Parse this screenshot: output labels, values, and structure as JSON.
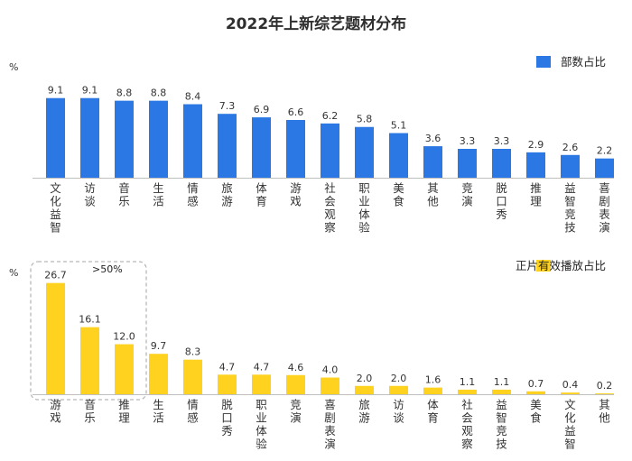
{
  "title": "2022年上新综艺题材分布",
  "chart_data": [
    {
      "type": "bar",
      "unit": "%",
      "legend": "部数占比",
      "color": "#2B78E4",
      "categories": [
        "文化益智",
        "访谈",
        "音乐",
        "生活",
        "情感",
        "旅游",
        "体育",
        "游戏",
        "社会观察",
        "职业体验",
        "美食",
        "其他",
        "竞演",
        "脱口秀",
        "推理",
        "益智竞技",
        "喜剧表演"
      ],
      "values": [
        9.1,
        9.1,
        8.8,
        8.8,
        8.4,
        7.3,
        6.9,
        6.6,
        6.2,
        5.8,
        5.1,
        3.6,
        3.3,
        3.3,
        2.9,
        2.6,
        2.2
      ],
      "labels": [
        "9.1",
        "9.1",
        "8.8",
        "8.8",
        "8.4",
        "7.3",
        "6.9",
        "6.6",
        "6.2",
        "5.8",
        "5.1",
        "3.6",
        "3.3",
        "3.3",
        "2.9",
        "2.6",
        "2.2"
      ],
      "ylim": [
        0,
        10
      ]
    },
    {
      "type": "bar",
      "unit": "%",
      "legend": "正片有效播放占比",
      "color": "#FFD21F",
      "categories": [
        "游戏",
        "音乐",
        "推理",
        "生活",
        "情感",
        "脱口秀",
        "职业体验",
        "竞演",
        "喜剧表演",
        "旅游",
        "访谈",
        "体育",
        "社会观察",
        "益智竞技",
        "美食",
        "文化益智",
        "其他"
      ],
      "values": [
        26.7,
        16.1,
        12.0,
        9.7,
        8.3,
        4.7,
        4.7,
        4.6,
        4.0,
        2.0,
        2.0,
        1.6,
        1.1,
        1.1,
        0.7,
        0.4,
        0.2
      ],
      "labels": [
        "26.7",
        "16.1",
        "12.0",
        "9.7",
        "8.3",
        "4.7",
        "4.7",
        "4.6",
        "4.0",
        "2.0",
        "2.0",
        "1.6",
        "1.1",
        "1.1",
        "0.7",
        "0.4",
        "0.2"
      ],
      "ylim": [
        0,
        27.5
      ],
      "annotation": ">50%",
      "annotation_group": 3
    }
  ]
}
